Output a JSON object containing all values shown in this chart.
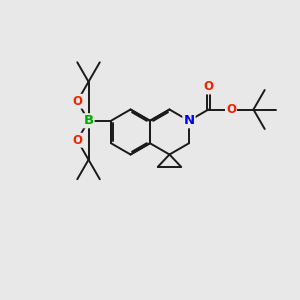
{
  "background_color": "#e8e8e8",
  "bond_color": "#1a1a1a",
  "bond_width": 1.4,
  "atom_colors": {
    "N": "#0000ee",
    "O": "#ee2200",
    "B": "#00aa00",
    "C": "#1a1a1a"
  },
  "font_size": 8.5,
  "fig_width": 3.0,
  "fig_height": 3.0,
  "dpi": 100
}
